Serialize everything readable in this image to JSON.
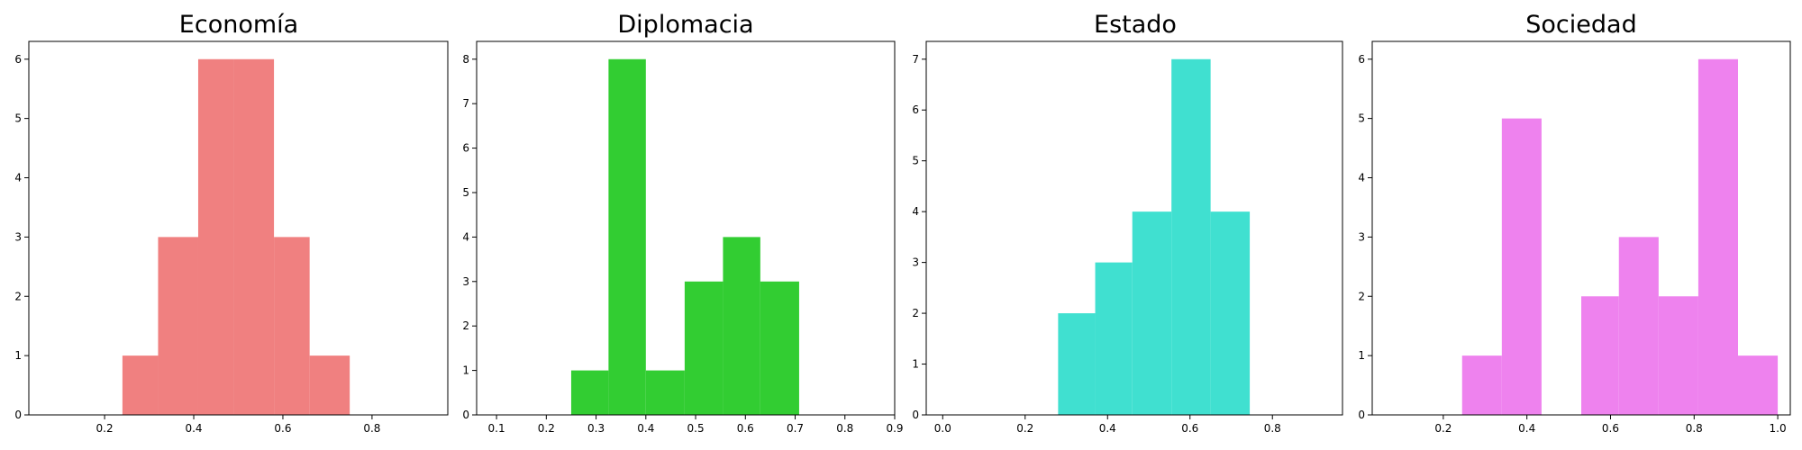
{
  "chart_data": [
    {
      "type": "histogram",
      "title": "Economía",
      "color": "#f08080",
      "xlim": [
        0.03,
        0.97
      ],
      "ylim": [
        0,
        6.3
      ],
      "xticks": [
        "0.2",
        "0.4",
        "0.6",
        "0.8"
      ],
      "xtick_values": [
        0.2,
        0.4,
        0.6,
        0.8
      ],
      "yticks": [
        "0",
        "1",
        "2",
        "3",
        "4",
        "5",
        "6"
      ],
      "ytick_values": [
        0,
        1,
        2,
        3,
        4,
        5,
        6
      ],
      "bins": [
        {
          "x0": 0.24,
          "x1": 0.32,
          "count": 1
        },
        {
          "x0": 0.32,
          "x1": 0.41,
          "count": 3
        },
        {
          "x0": 0.41,
          "x1": 0.49,
          "count": 6
        },
        {
          "x0": 0.49,
          "x1": 0.58,
          "count": 6
        },
        {
          "x0": 0.58,
          "x1": 0.66,
          "count": 3
        },
        {
          "x0": 0.66,
          "x1": 0.75,
          "count": 1
        }
      ]
    },
    {
      "type": "histogram",
      "title": "Diplomacia",
      "color": "#32cd32",
      "xlim": [
        0.06,
        0.9
      ],
      "ylim": [
        0,
        8.4
      ],
      "xticks": [
        "0.1",
        "0.2",
        "0.3",
        "0.4",
        "0.5",
        "0.6",
        "0.7",
        "0.8",
        "0.9"
      ],
      "xtick_values": [
        0.1,
        0.2,
        0.3,
        0.4,
        0.5,
        0.6,
        0.7,
        0.8,
        0.9
      ],
      "yticks": [
        "0",
        "1",
        "2",
        "3",
        "4",
        "5",
        "6",
        "7",
        "8"
      ],
      "ytick_values": [
        0,
        1,
        2,
        3,
        4,
        5,
        6,
        7,
        8
      ],
      "bins": [
        {
          "x0": 0.25,
          "x1": 0.325,
          "count": 1
        },
        {
          "x0": 0.325,
          "x1": 0.4,
          "count": 8
        },
        {
          "x0": 0.4,
          "x1": 0.478,
          "count": 1
        },
        {
          "x0": 0.478,
          "x1": 0.555,
          "count": 3
        },
        {
          "x0": 0.555,
          "x1": 0.63,
          "count": 4
        },
        {
          "x0": 0.63,
          "x1": 0.708,
          "count": 3
        }
      ]
    },
    {
      "type": "histogram",
      "title": "Estado",
      "color": "#40e0d0",
      "xlim": [
        -0.04,
        0.97
      ],
      "ylim": [
        0,
        7.35
      ],
      "xticks": [
        "0.0",
        "0.2",
        "0.4",
        "0.6",
        "0.8"
      ],
      "xtick_values": [
        0.0,
        0.2,
        0.4,
        0.6,
        0.8
      ],
      "yticks": [
        "0",
        "1",
        "2",
        "3",
        "4",
        "5",
        "6",
        "7"
      ],
      "ytick_values": [
        0,
        1,
        2,
        3,
        4,
        5,
        6,
        7
      ],
      "bins": [
        {
          "x0": 0.28,
          "x1": 0.37,
          "count": 2
        },
        {
          "x0": 0.37,
          "x1": 0.46,
          "count": 3
        },
        {
          "x0": 0.46,
          "x1": 0.555,
          "count": 4
        },
        {
          "x0": 0.555,
          "x1": 0.65,
          "count": 7
        },
        {
          "x0": 0.65,
          "x1": 0.745,
          "count": 4
        }
      ]
    },
    {
      "type": "histogram",
      "title": "Sociedad",
      "color": "#ee82ee",
      "xlim": [
        0.03,
        1.03
      ],
      "ylim": [
        0,
        6.3
      ],
      "xticks": [
        "0.2",
        "0.4",
        "0.6",
        "0.8",
        "1.0"
      ],
      "xtick_values": [
        0.2,
        0.4,
        0.6,
        0.8,
        1.0
      ],
      "yticks": [
        "0",
        "1",
        "2",
        "3",
        "4",
        "5",
        "6"
      ],
      "ytick_values": [
        0,
        1,
        2,
        3,
        4,
        5,
        6
      ],
      "bins": [
        {
          "x0": 0.245,
          "x1": 0.34,
          "count": 1
        },
        {
          "x0": 0.34,
          "x1": 0.435,
          "count": 5
        },
        {
          "x0": 0.435,
          "x1": 0.53,
          "count": 0
        },
        {
          "x0": 0.53,
          "x1": 0.62,
          "count": 2
        },
        {
          "x0": 0.62,
          "x1": 0.715,
          "count": 3
        },
        {
          "x0": 0.715,
          "x1": 0.81,
          "count": 2
        },
        {
          "x0": 0.81,
          "x1": 0.905,
          "count": 6
        },
        {
          "x0": 0.905,
          "x1": 1.0,
          "count": 1
        }
      ]
    }
  ]
}
